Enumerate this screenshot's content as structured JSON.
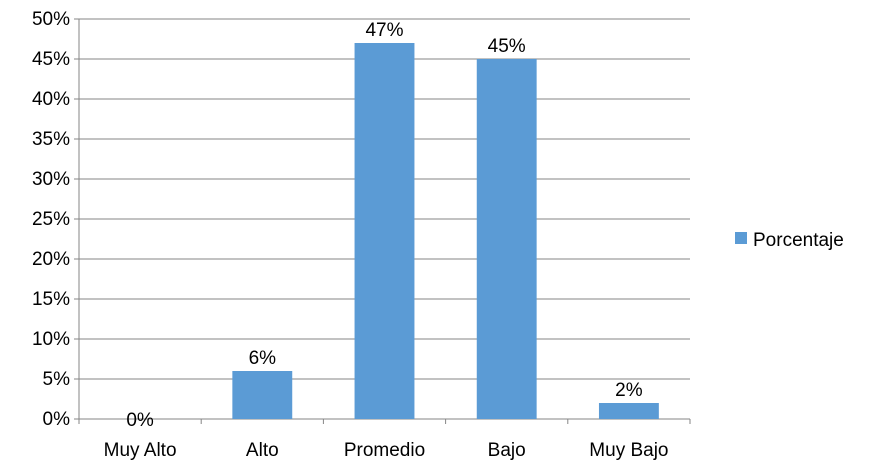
{
  "chart_data": {
    "type": "bar",
    "categories": [
      "Muy Alto",
      "Alto",
      "Promedio",
      "Bajo",
      "Muy Bajo"
    ],
    "series": [
      {
        "name": "Porcentaje",
        "values": [
          0,
          6,
          47,
          45,
          2
        ],
        "data_labels": [
          "0%",
          "6%",
          "47%",
          "45%",
          "2%"
        ],
        "color": "#5b9bd5"
      }
    ],
    "ylim": [
      0,
      50
    ],
    "yticks": [
      0,
      5,
      10,
      15,
      20,
      25,
      30,
      35,
      40,
      45,
      50
    ],
    "ytick_labels": [
      "0%",
      "5%",
      "10%",
      "15%",
      "20%",
      "25%",
      "30%",
      "35%",
      "40%",
      "45%",
      "50%"
    ],
    "grid": true,
    "legend_position": "right"
  }
}
